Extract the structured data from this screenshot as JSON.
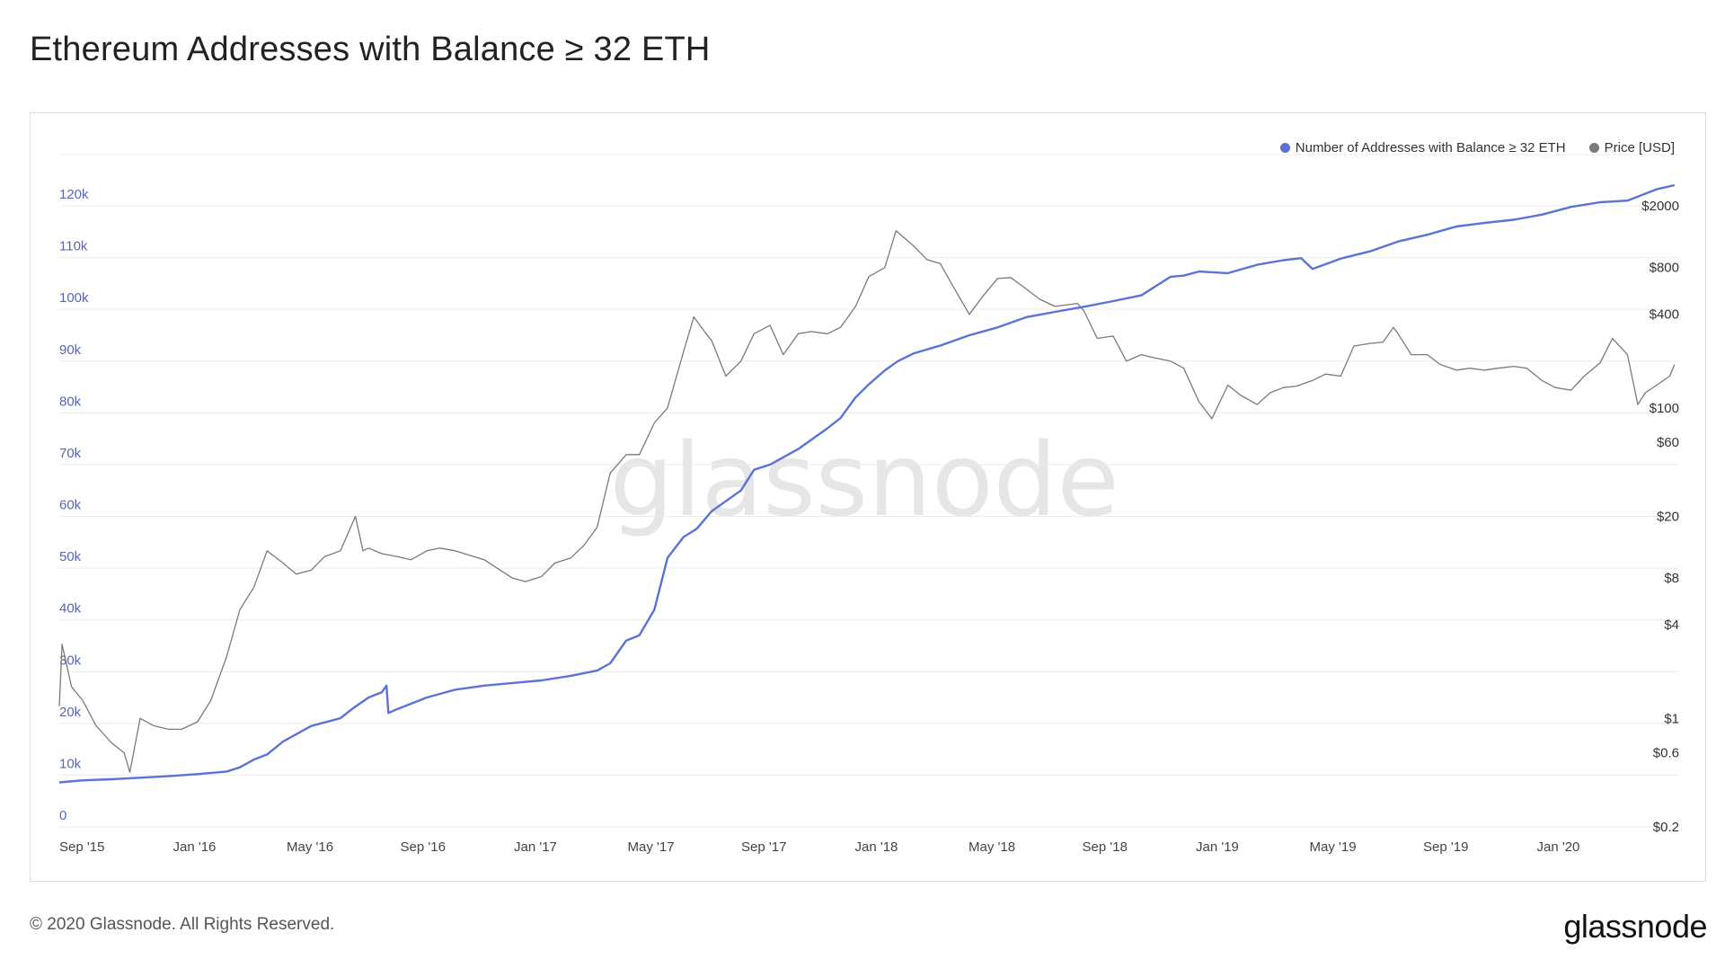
{
  "title": "Ethereum Addresses with Balance ≥ 32 ETH",
  "footer": {
    "copyright": "© 2020 Glassnode. All Rights Reserved.",
    "logo": "glassnode"
  },
  "watermark": "glassnode",
  "colors": {
    "addresses": "#5b72d6",
    "price": "#7a7a7a",
    "grid": "#ececec",
    "axis_left": "#5566b8",
    "axis_right": "#333333",
    "watermark": "#e6e6e6"
  },
  "chart_data": {
    "type": "line",
    "x_axis": {
      "ticks": [
        "Sep '15",
        "Jan '16",
        "May '16",
        "Sep '16",
        "Jan '17",
        "May '17",
        "Sep '17",
        "Jan '18",
        "May '18",
        "Sep '18",
        "Jan '19",
        "May '19",
        "Sep '19",
        "Jan '20"
      ],
      "range": [
        "2015-08-07",
        "2020-04-25"
      ]
    },
    "y_axis_left": {
      "ticks": [
        "0",
        "10k",
        "20k",
        "30k",
        "40k",
        "50k",
        "60k",
        "70k",
        "80k",
        "90k",
        "100k",
        "110k",
        "120k"
      ],
      "range": [
        0,
        120000
      ],
      "scale": "linear"
    },
    "y_axis_right": {
      "ticks": [
        "$0.2",
        "$0.6",
        "$1",
        "$4",
        "$8",
        "$20",
        "$60",
        "$100",
        "$400",
        "$800",
        "$2000"
      ],
      "tick_values": [
        0.2,
        0.6,
        1,
        4,
        8,
        20,
        60,
        100,
        400,
        800,
        2000
      ],
      "scale": "log",
      "range": [
        0.2,
        2000
      ]
    },
    "legend": {
      "position": "top-right"
    },
    "grid": true,
    "series": [
      {
        "name": "Number of Addresses with Balance ≥ 32 ETH",
        "axis": "left",
        "x": [
          "2015-08-07",
          "2015-09-01",
          "2015-10-01",
          "2015-11-01",
          "2015-12-01",
          "2016-01-01",
          "2016-02-01",
          "2016-02-15",
          "2016-03-01",
          "2016-03-15",
          "2016-04-01",
          "2016-05-01",
          "2016-06-01",
          "2016-06-15",
          "2016-07-01",
          "2016-07-15",
          "2016-07-20",
          "2016-07-22",
          "2016-08-01",
          "2016-09-01",
          "2016-10-01",
          "2016-11-01",
          "2016-12-01",
          "2017-01-01",
          "2017-02-01",
          "2017-03-01",
          "2017-03-15",
          "2017-04-01",
          "2017-04-15",
          "2017-05-01",
          "2017-05-15",
          "2017-06-01",
          "2017-06-15",
          "2017-07-01",
          "2017-08-01",
          "2017-08-15",
          "2017-09-01",
          "2017-10-01",
          "2017-11-01",
          "2017-11-15",
          "2017-12-01",
          "2017-12-15",
          "2018-01-01",
          "2018-01-15",
          "2018-02-01",
          "2018-03-01",
          "2018-04-01",
          "2018-05-01",
          "2018-06-01",
          "2018-07-01",
          "2018-08-01",
          "2018-09-01",
          "2018-10-01",
          "2018-11-01",
          "2018-11-15",
          "2018-12-01",
          "2019-01-01",
          "2019-02-01",
          "2019-03-01",
          "2019-03-20",
          "2019-04-01",
          "2019-05-01",
          "2019-06-01",
          "2019-07-01",
          "2019-08-01",
          "2019-09-01",
          "2019-10-01",
          "2019-11-01",
          "2019-12-01",
          "2020-01-01",
          "2020-02-01",
          "2020-03-01",
          "2020-04-01",
          "2020-04-20"
        ],
        "values": [
          8600,
          9000,
          9200,
          9500,
          9800,
          10200,
          10700,
          11500,
          13000,
          14000,
          16500,
          19500,
          21000,
          23000,
          25000,
          26000,
          27300,
          22000,
          22800,
          25000,
          26500,
          27300,
          27800,
          28300,
          29200,
          30200,
          31600,
          36000,
          37000,
          42000,
          52000,
          56000,
          57600,
          61000,
          65000,
          69000,
          70000,
          73000,
          77000,
          79000,
          83000,
          85500,
          88200,
          90000,
          91500,
          93000,
          95000,
          96500,
          98500,
          99500,
          100500,
          101600,
          102700,
          106300,
          106500,
          107300,
          107000,
          108600,
          109500,
          109900,
          107800,
          109800,
          111200,
          113100,
          114400,
          116000,
          116700,
          117300,
          118300,
          119800,
          120700,
          121000,
          123200,
          124000
        ]
      },
      {
        "name": "Price [USD]",
        "axis": "right",
        "x": [
          "2015-08-07",
          "2015-08-10",
          "2015-08-20",
          "2015-09-01",
          "2015-09-15",
          "2015-10-01",
          "2015-10-15",
          "2015-10-21",
          "2015-11-01",
          "2015-11-15",
          "2015-12-01",
          "2015-12-15",
          "2016-01-01",
          "2016-01-15",
          "2016-02-01",
          "2016-02-15",
          "2016-03-01",
          "2016-03-15",
          "2016-04-01",
          "2016-04-15",
          "2016-05-01",
          "2016-05-15",
          "2016-06-01",
          "2016-06-17",
          "2016-06-25",
          "2016-07-01",
          "2016-07-15",
          "2016-08-01",
          "2016-08-15",
          "2016-09-01",
          "2016-09-15",
          "2016-10-01",
          "2016-11-01",
          "2016-12-01",
          "2016-12-15",
          "2017-01-01",
          "2017-01-15",
          "2017-02-01",
          "2017-02-15",
          "2017-03-01",
          "2017-03-15",
          "2017-04-01",
          "2017-04-15",
          "2017-05-01",
          "2017-05-15",
          "2017-06-01",
          "2017-06-12",
          "2017-06-25",
          "2017-07-01",
          "2017-07-16",
          "2017-08-01",
          "2017-08-15",
          "2017-09-01",
          "2017-09-15",
          "2017-10-01",
          "2017-10-15",
          "2017-11-01",
          "2017-11-15",
          "2017-12-01",
          "2017-12-15",
          "2018-01-01",
          "2018-01-13",
          "2018-02-01",
          "2018-02-15",
          "2018-03-01",
          "2018-03-15",
          "2018-04-01",
          "2018-04-15",
          "2018-05-01",
          "2018-05-15",
          "2018-06-01",
          "2018-06-15",
          "2018-07-01",
          "2018-07-25",
          "2018-08-01",
          "2018-08-15",
          "2018-09-01",
          "2018-09-15",
          "2018-10-01",
          "2018-10-15",
          "2018-11-01",
          "2018-11-15",
          "2018-12-01",
          "2018-12-15",
          "2019-01-01",
          "2019-01-15",
          "2019-02-01",
          "2019-02-15",
          "2019-03-01",
          "2019-03-15",
          "2019-04-01",
          "2019-04-15",
          "2019-05-01",
          "2019-05-15",
          "2019-06-01",
          "2019-06-15",
          "2019-06-26",
          "2019-07-01",
          "2019-07-15",
          "2019-08-01",
          "2019-08-15",
          "2019-09-01",
          "2019-09-15",
          "2019-10-01",
          "2019-10-15",
          "2019-11-01",
          "2019-11-15",
          "2019-12-01",
          "2019-12-15",
          "2020-01-01",
          "2020-01-15",
          "2020-02-01",
          "2020-02-14",
          "2020-03-01",
          "2020-03-12",
          "2020-03-20",
          "2020-04-01",
          "2020-04-15",
          "2020-04-20"
        ],
        "values": [
          1.2,
          3.0,
          1.6,
          1.3,
          0.9,
          0.7,
          0.6,
          0.45,
          1.0,
          0.9,
          0.85,
          0.85,
          0.95,
          1.3,
          2.5,
          5.0,
          7.0,
          12.0,
          10.0,
          8.5,
          9.0,
          11.0,
          12.0,
          20.0,
          12.0,
          12.5,
          11.5,
          11.0,
          10.5,
          12.0,
          12.5,
          12.0,
          10.5,
          8.0,
          7.6,
          8.2,
          10.0,
          10.8,
          13.0,
          17.0,
          38.0,
          50.0,
          50.0,
          80.0,
          100.0,
          230.0,
          385.0,
          300.0,
          270.0,
          160.0,
          200.0,
          300.0,
          340.0,
          220.0,
          300.0,
          310.0,
          300.0,
          330.0,
          450.0,
          700.0,
          800.0,
          1380.0,
          1100.0,
          900.0,
          850.0,
          600.0,
          400.0,
          520.0,
          680.0,
          690.0,
          580.0,
          500.0,
          450.0,
          470.0,
          420.0,
          280.0,
          290.0,
          200.0,
          220.0,
          210.0,
          200.0,
          180.0,
          110.0,
          85.0,
          140.0,
          120.0,
          105.0,
          125.0,
          135.0,
          138.0,
          150.0,
          165.0,
          160.0,
          250.0,
          260.0,
          265.0,
          330.0,
          300.0,
          220.0,
          220.0,
          190.0,
          175.0,
          180.0,
          175.0,
          180.0,
          185.0,
          180.0,
          150.0,
          135.0,
          130.0,
          160.0,
          195.0,
          280.0,
          220.0,
          105.0,
          125.0,
          140.0,
          160.0,
          190.0
        ]
      }
    ]
  }
}
